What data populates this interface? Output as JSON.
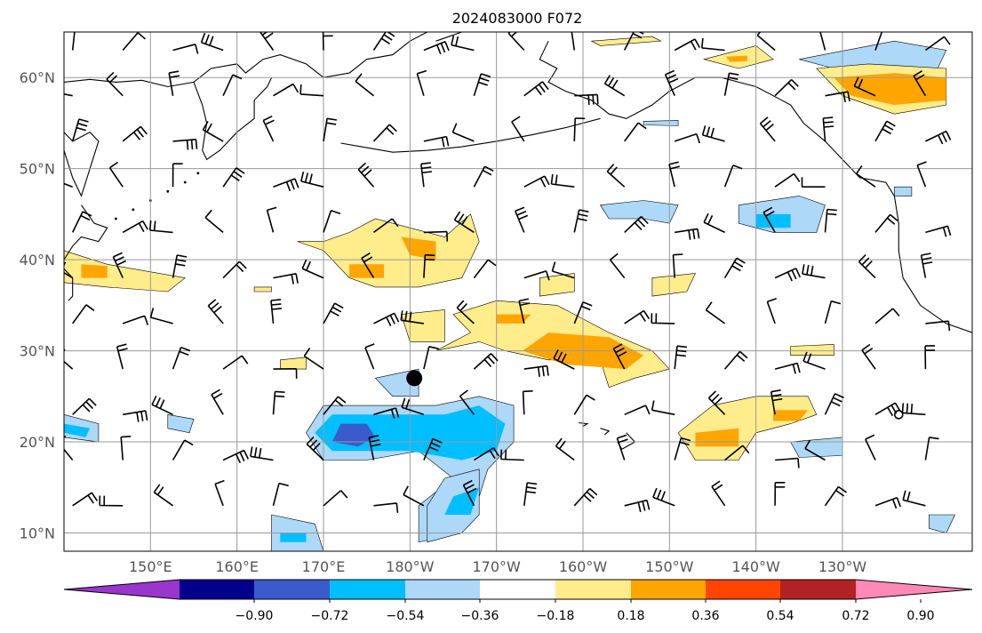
{
  "title": "2024083000 F072",
  "map": {
    "lon_range": [
      140,
      245
    ],
    "lat_range": [
      8,
      65
    ],
    "lat_ticks": [
      {
        "lat": 10,
        "label": "10°N"
      },
      {
        "lat": 20,
        "label": "20°N"
      },
      {
        "lat": 30,
        "label": "30°N"
      },
      {
        "lat": 40,
        "label": "40°N"
      },
      {
        "lat": 50,
        "label": "50°N"
      },
      {
        "lat": 60,
        "label": "60°N"
      }
    ],
    "lon_ticks": [
      {
        "lon": 150,
        "label": "150°E"
      },
      {
        "lon": 160,
        "label": "160°E"
      },
      {
        "lon": 170,
        "label": "170°E"
      },
      {
        "lon": 180,
        "label": "180°W"
      },
      {
        "lon": 190,
        "label": "170°W"
      },
      {
        "lon": 200,
        "label": "160°W"
      },
      {
        "lon": 210,
        "label": "150°W"
      },
      {
        "lon": 220,
        "label": "140°W"
      },
      {
        "lon": 230,
        "label": "130°W"
      }
    ],
    "grid": true,
    "storm_marker": {
      "lon": 180.5,
      "lat": 27
    },
    "open_marker": {
      "lon": 236.5,
      "lat": 23
    },
    "coastline_color": "#000000",
    "colors": {
      "pos1": "#ffec8b",
      "pos2": "#ffa500",
      "pos3": "#ff4500",
      "neg1": "#add8f7",
      "neg2": "#00bfff",
      "neg3": "#3a5bcc"
    },
    "anomaly_regions": [
      {
        "sign": "neg",
        "level": 1,
        "pts": [
          [
            176,
            24
          ],
          [
            183,
            24
          ],
          [
            188,
            25
          ],
          [
            192,
            24
          ],
          [
            192,
            20
          ],
          [
            189,
            17
          ],
          [
            188,
            14
          ],
          [
            186,
            10
          ],
          [
            181,
            9
          ],
          [
            181,
            13
          ],
          [
            185,
            16
          ],
          [
            181,
            19
          ],
          [
            175,
            18
          ],
          [
            170,
            18
          ],
          [
            168,
            21
          ],
          [
            170,
            24
          ]
        ]
      },
      {
        "sign": "neg",
        "level": 2,
        "pts": [
          [
            177,
            23
          ],
          [
            184,
            23
          ],
          [
            188,
            24
          ],
          [
            191,
            22
          ],
          [
            190,
            19
          ],
          [
            186,
            18
          ],
          [
            180,
            19
          ],
          [
            175,
            19
          ],
          [
            171,
            19
          ],
          [
            169,
            21
          ],
          [
            171,
            23
          ]
        ]
      },
      {
        "sign": "neg",
        "level": 3,
        "pts": [
          [
            172,
            22
          ],
          [
            175,
            22
          ],
          [
            176,
            20.5
          ],
          [
            174,
            19.5
          ],
          [
            171,
            20
          ]
        ]
      },
      {
        "sign": "neg",
        "level": 1,
        "pts": [
          [
            176,
            27
          ],
          [
            181,
            28
          ],
          [
            181,
            25
          ],
          [
            178,
            25
          ]
        ]
      },
      {
        "sign": "neg",
        "level": 1,
        "pts": [
          [
            184,
            16
          ],
          [
            188,
            17
          ],
          [
            188,
            12
          ],
          [
            186,
            10
          ],
          [
            182,
            9
          ],
          [
            182,
            13
          ]
        ]
      },
      {
        "sign": "neg",
        "level": 2,
        "pts": [
          [
            185,
            14
          ],
          [
            188,
            15
          ],
          [
            187,
            12
          ],
          [
            184,
            12
          ]
        ]
      },
      {
        "sign": "neg",
        "level": 1,
        "pts": [
          [
            164,
            12
          ],
          [
            169,
            11
          ],
          [
            170,
            8
          ],
          [
            164,
            8
          ]
        ]
      },
      {
        "sign": "neg",
        "level": 2,
        "pts": [
          [
            165,
            10
          ],
          [
            168,
            10
          ],
          [
            168,
            9
          ],
          [
            165,
            9
          ]
        ]
      },
      {
        "sign": "neg",
        "level": 1,
        "pts": [
          [
            140,
            23
          ],
          [
            144,
            22
          ],
          [
            144,
            20
          ],
          [
            140,
            20.5
          ]
        ]
      },
      {
        "sign": "neg",
        "level": 2,
        "pts": [
          [
            140,
            22
          ],
          [
            143,
            21.5
          ],
          [
            142.5,
            20.5
          ],
          [
            140,
            21
          ]
        ]
      },
      {
        "sign": "neg",
        "level": 1,
        "pts": [
          [
            152,
            23
          ],
          [
            155,
            22.5
          ],
          [
            154.5,
            21
          ],
          [
            152,
            21.5
          ]
        ]
      },
      {
        "sign": "neg",
        "level": 1,
        "pts": [
          [
            202,
            46
          ],
          [
            207,
            46.5
          ],
          [
            211,
            46
          ],
          [
            210,
            44
          ],
          [
            207,
            44.5
          ],
          [
            203,
            44.5
          ]
        ]
      },
      {
        "sign": "neg",
        "level": 1,
        "pts": [
          [
            218,
            46
          ],
          [
            225,
            47
          ],
          [
            228,
            46
          ],
          [
            227,
            43
          ],
          [
            222,
            43
          ],
          [
            218,
            44
          ]
        ]
      },
      {
        "sign": "neg",
        "level": 2,
        "pts": [
          [
            220,
            45
          ],
          [
            224,
            45
          ],
          [
            224,
            43.5
          ],
          [
            220,
            43.5
          ]
        ]
      },
      {
        "sign": "neg",
        "level": 1,
        "pts": [
          [
            225,
            62
          ],
          [
            236,
            64
          ],
          [
            242,
            63
          ],
          [
            241,
            61
          ],
          [
            236,
            61
          ],
          [
            229,
            61
          ]
        ]
      },
      {
        "sign": "neg",
        "level": 1,
        "pts": [
          [
            207,
            55.2
          ],
          [
            211,
            55.3
          ],
          [
            211,
            54.7
          ],
          [
            207,
            54.8
          ]
        ]
      },
      {
        "sign": "neg",
        "level": 1,
        "pts": [
          [
            224,
            20
          ],
          [
            230,
            20.5
          ],
          [
            230,
            18.5
          ],
          [
            225,
            18.3
          ]
        ]
      },
      {
        "sign": "neg",
        "level": 1,
        "pts": [
          [
            240,
            12
          ],
          [
            243,
            12
          ],
          [
            242,
            10
          ],
          [
            240,
            10.5
          ]
        ]
      },
      {
        "sign": "neg",
        "level": 1,
        "pts": [
          [
            236,
            48
          ],
          [
            238,
            48
          ],
          [
            238,
            47
          ],
          [
            236,
            47
          ]
        ]
      },
      {
        "sign": "pos",
        "level": 1,
        "pts": [
          [
            167,
            42
          ],
          [
            170,
            42
          ],
          [
            173,
            43
          ],
          [
            176,
            44.5
          ],
          [
            180,
            43.5
          ],
          [
            184,
            42.5
          ],
          [
            187,
            45
          ],
          [
            188,
            42
          ],
          [
            186,
            38
          ],
          [
            181,
            37
          ],
          [
            176,
            37
          ],
          [
            173,
            38
          ],
          [
            170,
            41
          ]
        ]
      },
      {
        "sign": "pos",
        "level": 2,
        "pts": [
          [
            179,
            42.5
          ],
          [
            183,
            42
          ],
          [
            183,
            40
          ],
          [
            180,
            40.5
          ]
        ]
      },
      {
        "sign": "pos",
        "level": 2,
        "pts": [
          [
            173,
            39.5
          ],
          [
            177,
            39.5
          ],
          [
            177,
            38
          ],
          [
            173,
            38
          ]
        ]
      },
      {
        "sign": "pos",
        "level": 1,
        "pts": [
          [
            185,
            34
          ],
          [
            190,
            35.5
          ],
          [
            197,
            35
          ],
          [
            203,
            32
          ],
          [
            208,
            30
          ],
          [
            210,
            28
          ],
          [
            206,
            27
          ],
          [
            203,
            26
          ],
          [
            202,
            29
          ],
          [
            196,
            29
          ],
          [
            191,
            30
          ],
          [
            188,
            31
          ],
          [
            183,
            30
          ],
          [
            187,
            32
          ]
        ]
      },
      {
        "sign": "pos",
        "level": 2,
        "pts": [
          [
            196,
            32
          ],
          [
            203,
            31.5
          ],
          [
            207,
            29.5
          ],
          [
            205,
            28
          ],
          [
            198,
            28.5
          ],
          [
            193,
            30
          ]
        ]
      },
      {
        "sign": "pos",
        "level": 2,
        "pts": [
          [
            190,
            34
          ],
          [
            194,
            34
          ],
          [
            193,
            33
          ],
          [
            190,
            33
          ]
        ]
      },
      {
        "sign": "pos",
        "level": 1,
        "pts": [
          [
            179,
            34
          ],
          [
            184,
            34.5
          ],
          [
            184,
            31
          ],
          [
            180,
            31
          ]
        ]
      },
      {
        "sign": "pos",
        "level": 1,
        "pts": [
          [
            215,
            24
          ],
          [
            220,
            25
          ],
          [
            226,
            25
          ],
          [
            227,
            23
          ],
          [
            224,
            22
          ],
          [
            220,
            21
          ],
          [
            218,
            18
          ],
          [
            213,
            18
          ],
          [
            211,
            21
          ]
        ]
      },
      {
        "sign": "pos",
        "level": 2,
        "pts": [
          [
            213,
            21
          ],
          [
            218,
            21.5
          ],
          [
            218,
            19.5
          ],
          [
            213,
            19.5
          ]
        ]
      },
      {
        "sign": "pos",
        "level": 2,
        "pts": [
          [
            222,
            23.5
          ],
          [
            226,
            23.5
          ],
          [
            225,
            22.3
          ],
          [
            222,
            22.3
          ]
        ]
      },
      {
        "sign": "pos",
        "level": 1,
        "pts": [
          [
            140,
            41
          ],
          [
            145,
            39.5
          ],
          [
            154,
            38
          ],
          [
            152,
            36.5
          ],
          [
            145,
            37
          ],
          [
            140,
            37.5
          ]
        ]
      },
      {
        "sign": "pos",
        "level": 2,
        "pts": [
          [
            142,
            39.5
          ],
          [
            145,
            39.3
          ],
          [
            145,
            38
          ],
          [
            142,
            38
          ]
        ]
      },
      {
        "sign": "pos",
        "level": 1,
        "pts": [
          [
            195,
            38
          ],
          [
            199,
            38.5
          ],
          [
            199,
            36.5
          ],
          [
            195,
            36
          ]
        ]
      },
      {
        "sign": "pos",
        "level": 1,
        "pts": [
          [
            208,
            38
          ],
          [
            213,
            38.5
          ],
          [
            212,
            36.5
          ],
          [
            208,
            36
          ]
        ]
      },
      {
        "sign": "pos",
        "level": 1,
        "pts": [
          [
            201,
            64
          ],
          [
            208,
            64.5
          ],
          [
            209,
            64
          ],
          [
            202,
            63.5
          ]
        ]
      },
      {
        "sign": "pos",
        "level": 1,
        "pts": [
          [
            214,
            62
          ],
          [
            220,
            63.5
          ],
          [
            222,
            62
          ],
          [
            218,
            61
          ]
        ]
      },
      {
        "sign": "pos",
        "level": 2,
        "pts": [
          [
            216.5,
            62.3
          ],
          [
            219,
            62.4
          ],
          [
            219,
            61.8
          ],
          [
            217,
            61.7
          ]
        ]
      },
      {
        "sign": "pos",
        "level": 1,
        "pts": [
          [
            227,
            61
          ],
          [
            233,
            61.5
          ],
          [
            242,
            61
          ],
          [
            242,
            57
          ],
          [
            236,
            56
          ],
          [
            230,
            58
          ]
        ]
      },
      {
        "sign": "pos",
        "level": 2,
        "pts": [
          [
            229,
            60
          ],
          [
            236,
            60.5
          ],
          [
            242,
            60
          ],
          [
            242,
            57.5
          ],
          [
            236,
            57
          ],
          [
            231,
            58
          ]
        ]
      },
      {
        "sign": "pos",
        "level": 1,
        "pts": [
          [
            165,
            29
          ],
          [
            168,
            29.3
          ],
          [
            168,
            28
          ],
          [
            165,
            28
          ]
        ]
      },
      {
        "sign": "pos",
        "level": 1,
        "pts": [
          [
            162,
            37
          ],
          [
            164,
            37
          ],
          [
            164,
            36.5
          ],
          [
            162,
            36.5
          ]
        ]
      },
      {
        "sign": "pos",
        "level": 1,
        "pts": [
          [
            224,
            30.5
          ],
          [
            229,
            30.7
          ],
          [
            229,
            29.5
          ],
          [
            224,
            29.5
          ]
        ]
      }
    ]
  },
  "colorbar": {
    "colors": [
      "#9a36cc",
      "#00008b",
      "#3a5bcc",
      "#00bfff",
      "#add8f7",
      "#ffffff",
      "#ffec8b",
      "#ffa500",
      "#ff4500",
      "#b22222",
      "#ff89b4"
    ],
    "labels": [
      "−0.90",
      "−0.72",
      "−0.54",
      "−0.36",
      "−0.18",
      "0.18",
      "0.36",
      "0.54",
      "0.72",
      "0.90"
    ]
  }
}
